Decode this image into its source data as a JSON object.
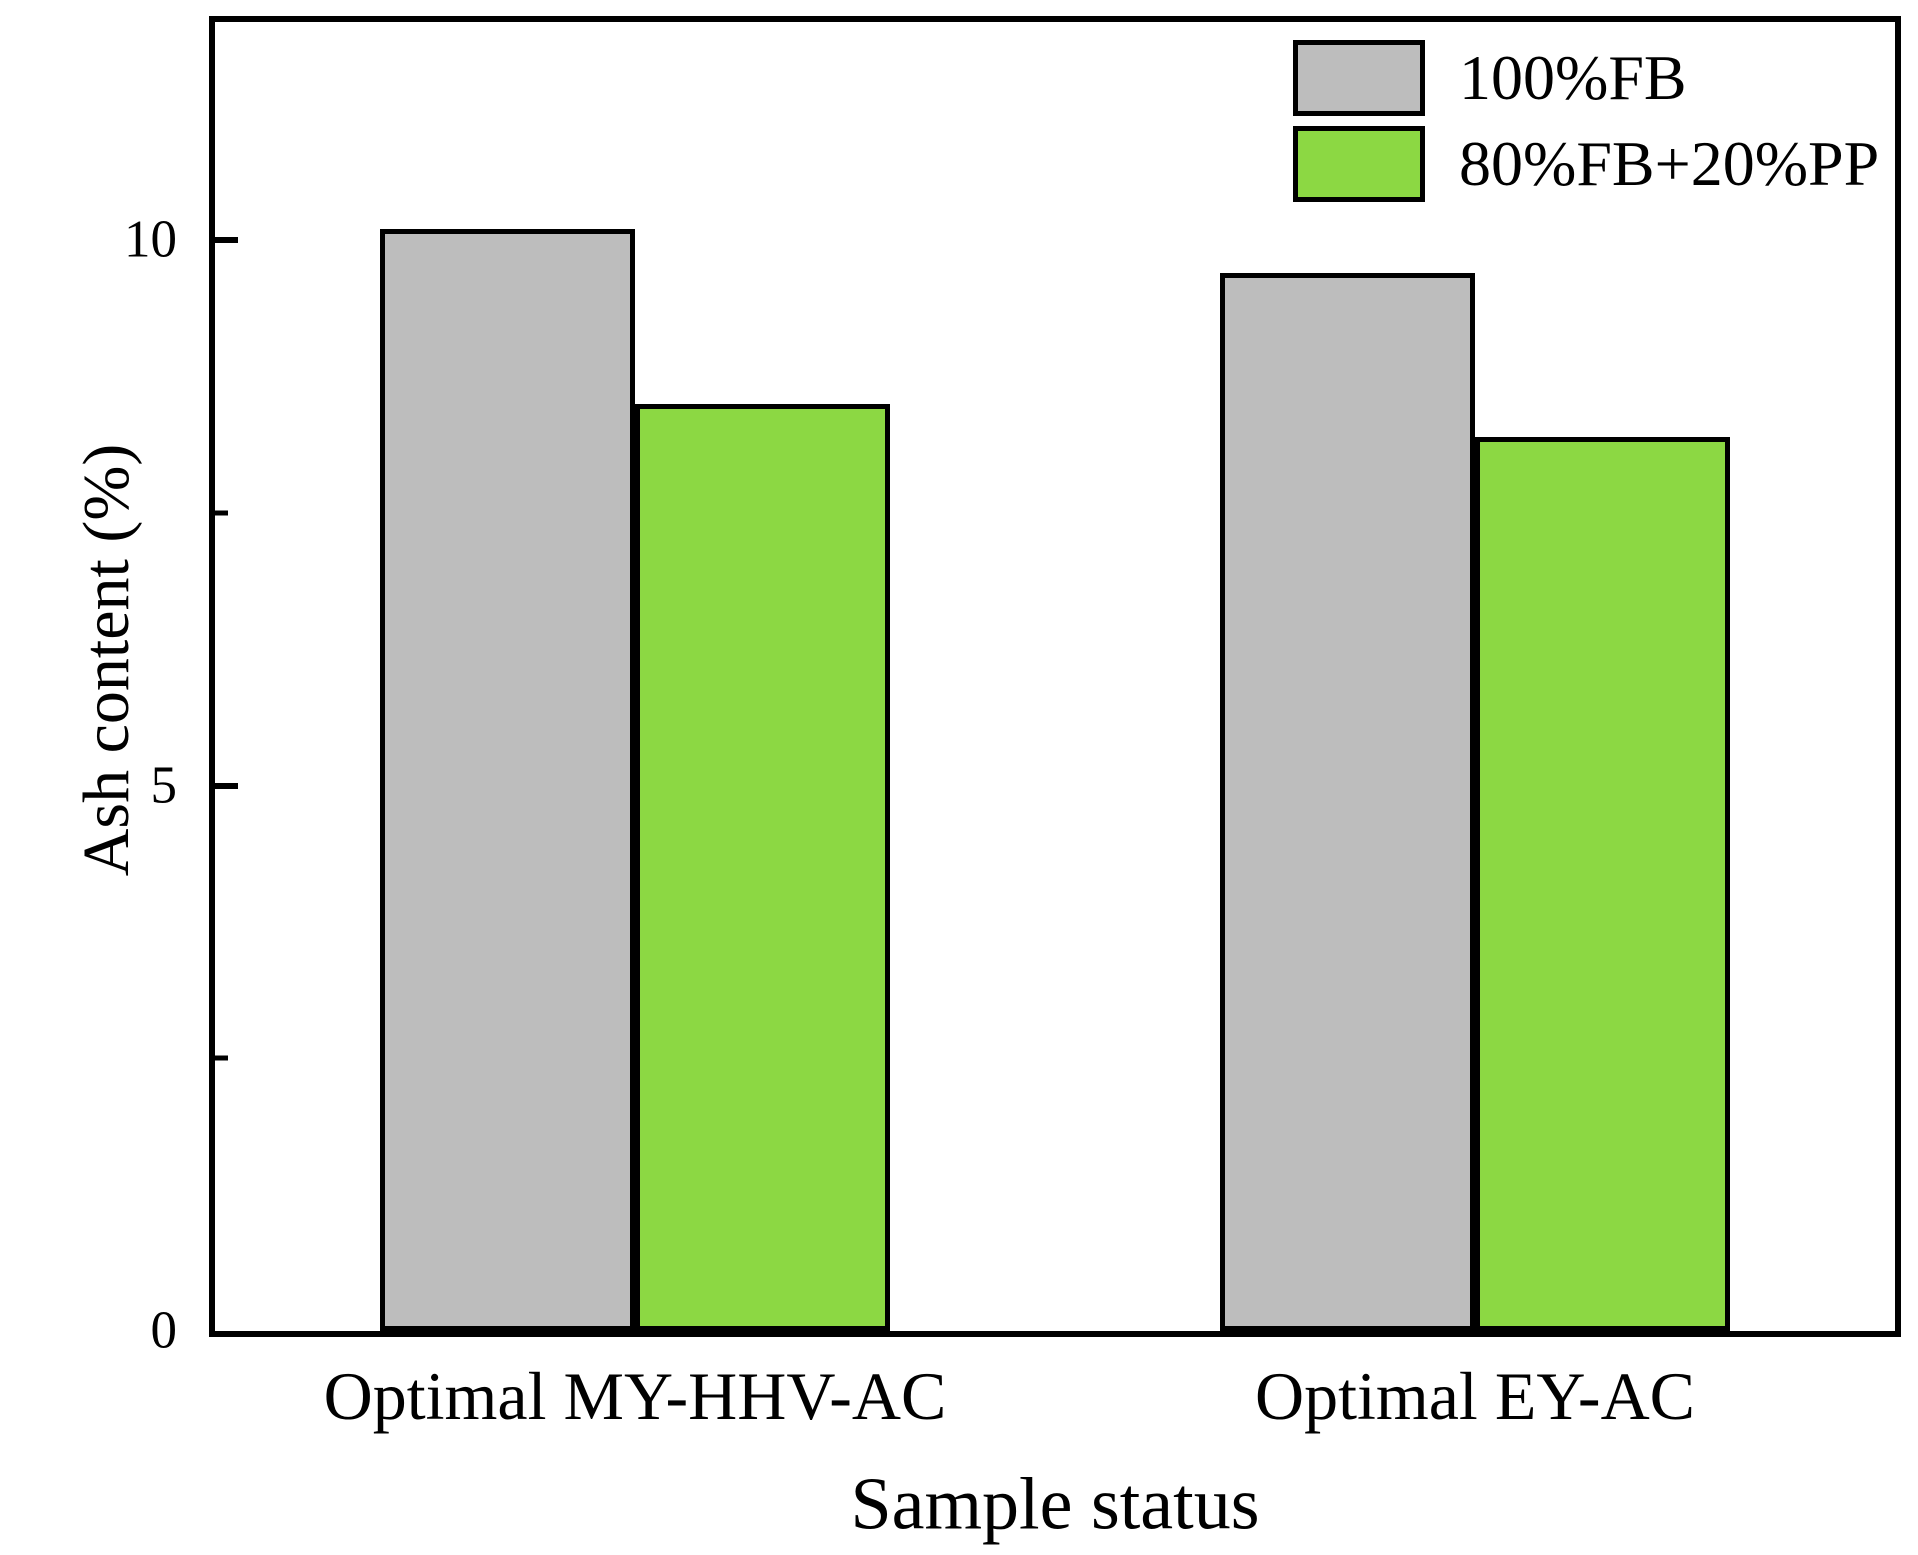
{
  "chart_data": {
    "type": "bar",
    "title": "",
    "categories": [
      "Optimal MY-HHV-AC",
      "Optimal EY-AC"
    ],
    "series": [
      {
        "name": "100%FB",
        "color": "#bdbdbd",
        "values": [
          10.1,
          9.7
        ]
      },
      {
        "name": "80%FB+20%PP",
        "color": "#8cd843",
        "values": [
          8.5,
          8.2
        ]
      }
    ],
    "xlabel": "Sample status",
    "ylabel": "Ash content (%)",
    "ylim": [
      0,
      12
    ],
    "yticks_major": [
      0,
      5,
      10
    ],
    "yticks_minor": [
      2.5,
      7.5
    ],
    "grid": false,
    "legend_position": "top-right",
    "bar_width_fraction": 0.152,
    "bar_edge_color": "#000000",
    "axis_color": "#000000",
    "background_color": "#ffffff"
  }
}
